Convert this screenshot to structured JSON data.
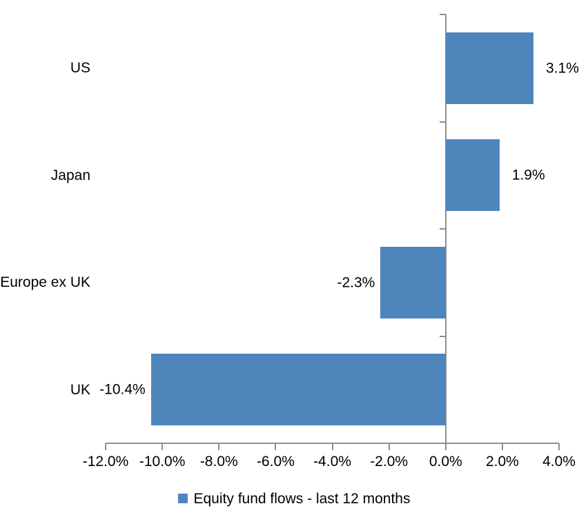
{
  "chart_data": {
    "type": "bar",
    "orientation": "horizontal",
    "title": "",
    "categories": [
      "US",
      "Japan",
      "Europe ex UK",
      "UK"
    ],
    "values": [
      3.1,
      1.9,
      -2.3,
      -10.4
    ],
    "value_labels": [
      "3.1%",
      "1.9%",
      "-2.3%",
      "-10.4%"
    ],
    "series_name": "Equity fund flows - last 12 months",
    "xlabel": "",
    "ylabel": "",
    "xlim": [
      -12,
      4
    ],
    "x_ticks": [
      -12,
      -10,
      -8,
      -6,
      -4,
      -2,
      0,
      2,
      4
    ],
    "x_tick_labels": [
      "-12.0%",
      "-10.0%",
      "-8.0%",
      "-6.0%",
      "-4.0%",
      "-2.0%",
      "0.0%",
      "2.0%",
      "4.0%"
    ],
    "grid": false,
    "legend_position": "bottom",
    "bar_color": "#4E86BC",
    "axis_color": "#8E8E8E",
    "text_color": "#000000"
  }
}
